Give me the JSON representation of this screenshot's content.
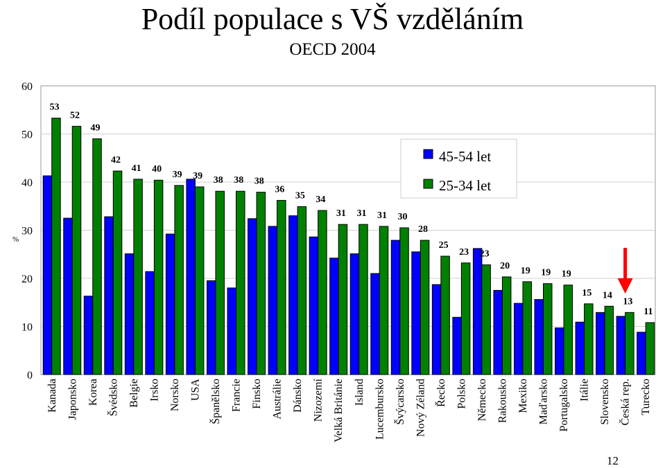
{
  "title": "Podíl populace s VŠ vzděláním",
  "subtitle": "OECD 2004",
  "page_number": "12",
  "colors": {
    "series1": "#0000ff",
    "series2": "#008000",
    "arrow": "#ff0000",
    "plot_border": "#999999"
  },
  "chart_data": {
    "type": "bar",
    "ylabel": "%",
    "ylim": [
      0,
      60
    ],
    "yticks": [
      0,
      10,
      20,
      30,
      40,
      50,
      60
    ],
    "grid": true,
    "legend_position": "top-right",
    "categories": [
      "Kanada",
      "Japonsko",
      "Korea",
      "Švédsko",
      "Belgie",
      "Irsko",
      "Norsko",
      "USA",
      "Španělsko",
      "Francie",
      "Finsko",
      "Austrálie",
      "Dánsko",
      "Nizozemí",
      "Velká Británie",
      "Island",
      "Lucembursko",
      "Švýcarsko",
      "Nový Zéland",
      "Řecko",
      "Polsko",
      "Německo",
      "Rakousko",
      "Mexiko",
      "Maďarsko",
      "Portugalsko",
      "Itálie",
      "Slovensko",
      "Česká rep.",
      "Turecko"
    ],
    "series": [
      {
        "name": "45-54 let",
        "values": [
          41.3,
          32.5,
          16.3,
          32.8,
          25.1,
          21.4,
          29.2,
          40.6,
          19.5,
          18.0,
          32.4,
          30.8,
          33.0,
          28.6,
          24.2,
          25.1,
          21.0,
          27.9,
          25.5,
          18.7,
          11.9,
          26.2,
          17.5,
          14.8,
          15.6,
          9.7,
          10.9,
          12.9,
          12.1,
          8.8
        ]
      },
      {
        "name": "25-34 let",
        "values": [
          53.3,
          51.6,
          49.0,
          42.3,
          40.6,
          40.4,
          39.3,
          39.0,
          38.1,
          38.1,
          37.9,
          36.2,
          34.9,
          34.1,
          31.2,
          31.2,
          30.8,
          30.5,
          27.9,
          24.6,
          23.2,
          22.8,
          20.3,
          19.3,
          18.9,
          18.6,
          14.7,
          14.2,
          12.9,
          10.8
        ]
      }
    ],
    "data_labels": [
      "53",
      "52",
      "49",
      "42",
      "41",
      "40",
      "39",
      "39",
      "38",
      "38",
      "38",
      "36",
      "35",
      "34",
      "31",
      "31",
      "31",
      "30",
      "28",
      "25",
      "23",
      "23",
      "20",
      "19",
      "19",
      "19",
      "15",
      "14",
      "13",
      "11"
    ],
    "annotation": {
      "type": "arrow",
      "category": "Česká rep."
    }
  }
}
